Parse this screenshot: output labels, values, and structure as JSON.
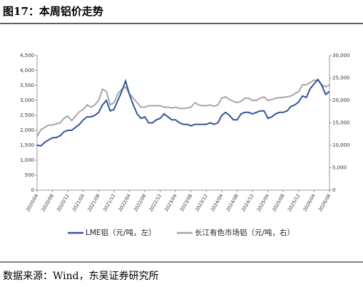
{
  "chart_data": {
    "type": "line",
    "title": "图17：本周铝价走势",
    "source": "数据来源：Wind，东吴证券研究所",
    "categories": [
      "2020/04",
      null,
      null,
      null,
      "2020/08",
      null,
      null,
      null,
      "2020/12",
      null,
      null,
      null,
      "2021/04",
      null,
      null,
      null,
      "2021/08",
      null,
      null,
      null,
      "2021/12",
      null,
      null,
      null,
      "2022/04",
      null,
      null,
      null,
      "2022/08",
      null,
      null,
      null,
      "2022/12",
      null,
      null,
      null,
      "2023/04",
      null,
      null,
      null,
      "2023/08",
      null,
      null,
      null,
      "2023/12",
      null,
      null,
      null,
      "2024/04",
      null,
      null,
      null,
      "2024/08",
      null,
      null,
      null,
      "2024/12",
      null,
      null,
      null,
      "2025/04",
      null,
      null,
      null,
      "2025/08",
      null,
      null,
      null,
      "2025/12",
      null,
      null,
      null,
      "2026/04",
      null,
      null,
      null,
      "2026/08"
    ],
    "series": [
      {
        "name": "LME铝（元/吨，左）",
        "color": "#2f5597",
        "axis": "y",
        "values": [
          1500,
          1480,
          1600,
          1680,
          1750,
          1760,
          1820,
          1950,
          2000,
          2000,
          2100,
          2200,
          2350,
          2450,
          2450,
          2500,
          2600,
          2850,
          3000,
          2650,
          2700,
          3000,
          3300,
          3650,
          3200,
          2850,
          2550,
          2400,
          2450,
          2250,
          2250,
          2350,
          2400,
          2550,
          2450,
          2350,
          2350,
          2250,
          2200,
          2200,
          2150,
          2200,
          2200,
          2200,
          2200,
          2250,
          2200,
          2250,
          2500,
          2600,
          2500,
          2350,
          2350,
          2550,
          2600,
          2600,
          2550,
          2600,
          2650,
          2650,
          2400,
          2450,
          2550,
          2600,
          2600,
          2650,
          2800,
          2850,
          2950,
          3150,
          3100,
          3400,
          3550,
          3700,
          3500,
          3200,
          3300
        ]
      },
      {
        "name": "长江有色市场铝（元/吨，右）",
        "color": "#a6a6a6",
        "axis": "y2",
        "values": [
          12000,
          13500,
          14000,
          14500,
          14500,
          14800,
          15000,
          16000,
          16500,
          15500,
          16500,
          17500,
          18000,
          19000,
          18500,
          19000,
          20000,
          22500,
          22000,
          19000,
          19500,
          21500,
          22500,
          23000,
          21500,
          20500,
          19500,
          18500,
          18500,
          18800,
          18800,
          18800,
          18800,
          18500,
          18500,
          18300,
          18500,
          18200,
          18200,
          18300,
          18500,
          19500,
          19000,
          18800,
          18800,
          19000,
          18700,
          19000,
          20500,
          20800,
          20200,
          19800,
          19500,
          19800,
          20500,
          20500,
          20000,
          20000,
          20500,
          20800,
          20000,
          20200,
          20500,
          20600,
          20700,
          20800,
          21000,
          21500,
          22000,
          23500,
          23500,
          24000,
          24500,
          24500,
          23500,
          23000,
          23500
        ]
      }
    ],
    "ylim": [
      0,
      4500
    ],
    "yticks": [
      0,
      500,
      {
        "value": 1000,
        "label": "1,000"
      },
      {
        "value": 1500,
        "label": "1,500"
      },
      {
        "value": 2000,
        "label": "2,000"
      },
      {
        "value": 2500,
        "label": "2,500"
      },
      {
        "value": 3000,
        "label": "3,000"
      },
      {
        "value": 3500,
        "label": "3,500"
      },
      {
        "value": 4000,
        "label": "4,000"
      },
      {
        "value": 4500,
        "label": "4,500"
      }
    ],
    "y2lim": [
      0,
      30000
    ],
    "y2ticks": [
      0,
      {
        "value": 5000,
        "label": "5,000"
      },
      {
        "value": 10000,
        "label": "10,000"
      },
      {
        "value": 15000,
        "label": "15,000"
      },
      {
        "value": 20000,
        "label": "20,000"
      },
      {
        "value": 25000,
        "label": "25,000"
      },
      {
        "value": 30000,
        "label": "30,000"
      }
    ],
    "grid": false
  }
}
